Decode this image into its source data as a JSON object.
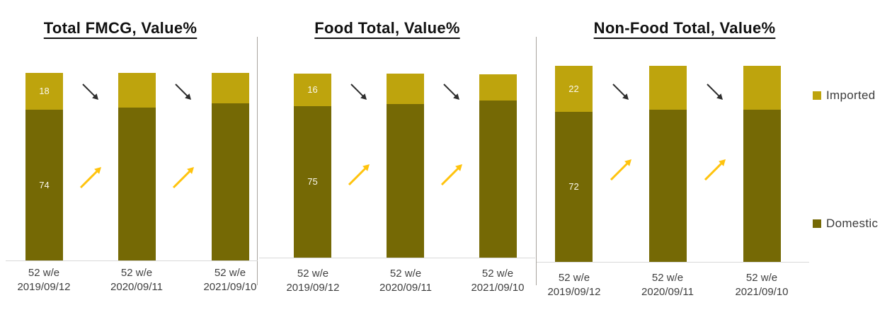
{
  "page": {
    "type": "stacked-bar-comparison",
    "background": "#FFFFFF"
  },
  "colors": {
    "imported": "#BEA40D",
    "domestic": "#756905",
    "growth_arrow": "#FFC30D",
    "decline_arrow": "#2E2E2E",
    "axis_line": "#D9D9D9",
    "divider": "#A8A49E",
    "bar_label_text": "#FBF9EE",
    "axis_text": "#3F3F3F",
    "title_text": "#111111"
  },
  "legend": {
    "position": "right",
    "items": [
      {
        "label": "Imported",
        "color": "#BEA40D"
      },
      {
        "label": "Domestic",
        "color": "#756905"
      }
    ]
  },
  "chart_data": [
    {
      "type": "bar",
      "stacked": true,
      "title": "Total FMCG, Value%",
      "ylim": [
        0,
        100
      ],
      "grid": false,
      "categories": [
        [
          "52 w/e",
          "2019/09/12"
        ],
        [
          "52 w/e",
          "2020/09/11"
        ],
        [
          "52 w/e",
          "2021/09/10"
        ]
      ],
      "series": [
        {
          "name": "Domestic",
          "values": [
            74,
            75,
            77
          ],
          "shown_labels": [
            "74",
            "",
            ""
          ]
        },
        {
          "name": "Imported",
          "values": [
            18,
            17,
            15
          ],
          "shown_labels": [
            "18",
            "",
            ""
          ]
        }
      ],
      "trend_arrows": [
        {
          "series": "Imported",
          "direction": "down"
        },
        {
          "series": "Domestic",
          "direction": "up"
        }
      ]
    },
    {
      "type": "bar",
      "stacked": true,
      "title": "Food Total, Value%",
      "ylim": [
        0,
        100
      ],
      "grid": false,
      "categories": [
        [
          "52 w/e",
          "2019/09/12"
        ],
        [
          "52 w/e",
          "2020/09/11"
        ],
        [
          "52 w/e",
          "2021/09/10"
        ]
      ],
      "series": [
        {
          "name": "Domestic",
          "values": [
            75,
            76,
            78
          ],
          "shown_labels": [
            "75",
            "",
            ""
          ]
        },
        {
          "name": "Imported",
          "values": [
            16,
            15,
            13
          ],
          "shown_labels": [
            "16",
            "",
            ""
          ]
        }
      ],
      "trend_arrows": [
        {
          "series": "Imported",
          "direction": "down"
        },
        {
          "series": "Domestic",
          "direction": "up"
        }
      ]
    },
    {
      "type": "bar",
      "stacked": true,
      "title": "Non-Food Total, Value%",
      "ylim": [
        0,
        100
      ],
      "grid": false,
      "categories": [
        [
          "52 w/e",
          "2019/09/12"
        ],
        [
          "52 w/e",
          "2020/09/11"
        ],
        [
          "52 w/e",
          "2021/09/10"
        ]
      ],
      "series": [
        {
          "name": "Domestic",
          "values": [
            72,
            73,
            73
          ],
          "shown_labels": [
            "72",
            "",
            ""
          ]
        },
        {
          "name": "Imported",
          "values": [
            22,
            21,
            21
          ],
          "shown_labels": [
            "22",
            "",
            ""
          ]
        }
      ],
      "trend_arrows": [
        {
          "series": "Imported",
          "direction": "down"
        },
        {
          "series": "Domestic",
          "direction": "up"
        }
      ]
    }
  ]
}
